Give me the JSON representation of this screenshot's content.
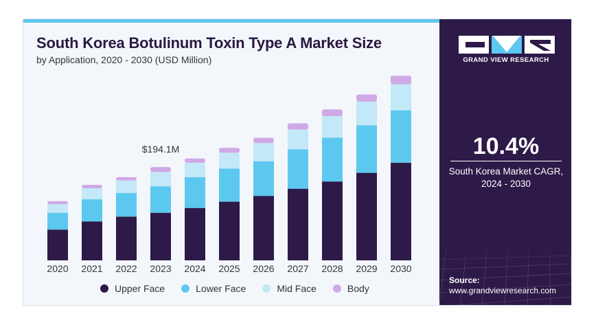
{
  "header": {
    "title": "South Korea Botulinum Toxin Type A Market Size",
    "subtitle": "by Application, 2020 - 2030 (USD Million)"
  },
  "chart_data": {
    "type": "bar",
    "stacked": true,
    "title": "South Korea Botulinum Toxin Type A Market Size",
    "subtitle": "by Application, 2020 - 2030 (USD Million)",
    "xlabel": "",
    "ylabel": "USD Million",
    "ylim": [
      0,
      400
    ],
    "grid": false,
    "categories": [
      "2020",
      "2021",
      "2022",
      "2023",
      "2024",
      "2025",
      "2026",
      "2027",
      "2028",
      "2029",
      "2030"
    ],
    "series": [
      {
        "name": "Upper Face",
        "color": "#2d1a48",
        "values": [
          64,
          81,
          91,
          99,
          109,
          122,
          134,
          149,
          164,
          182,
          203
        ]
      },
      {
        "name": "Lower Face",
        "color": "#5cc8ef",
        "values": [
          35,
          46,
          49,
          55,
          64,
          69,
          72,
          82,
          91,
          99,
          109
        ]
      },
      {
        "name": "Mid Face",
        "color": "#c3e8f7",
        "values": [
          18,
          23,
          26,
          30,
          30,
          33,
          38,
          41,
          45,
          49,
          54
        ]
      },
      {
        "name": "Body",
        "color": "#cfa9e6",
        "values": [
          6,
          7,
          7,
          10,
          9,
          10,
          11,
          13,
          14,
          15,
          18
        ]
      }
    ],
    "annotations": [
      {
        "category": "2023",
        "text": "$194.1M"
      }
    ],
    "legend_position": "bottom"
  },
  "side_panel": {
    "brand": "GRAND VIEW RESEARCH",
    "cagr_value": "10.4%",
    "cagr_label_line1": "South Korea Market CAGR,",
    "cagr_label_line2": "2024 - 2030",
    "source_label": "Source:",
    "source_url": "www.grandviewresearch.com"
  },
  "colors": {
    "accent_cyan": "#5cc8ef",
    "brand_purple": "#2d1a48",
    "title_color": "#2a1843"
  }
}
